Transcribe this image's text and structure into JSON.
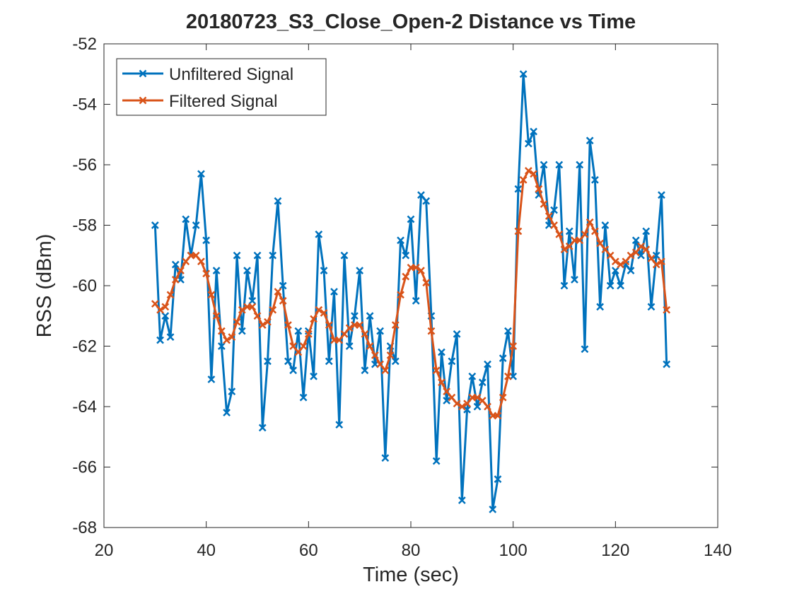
{
  "chart_data": {
    "type": "line",
    "title": "20180723_S3_Close_Open-2 Distance vs Time",
    "x_label": "Time (sec)",
    "y_label": "RSS (dBm)",
    "x": [
      30,
      31,
      32,
      33,
      34,
      35,
      36,
      37,
      38,
      39,
      40,
      41,
      42,
      43,
      44,
      45,
      46,
      47,
      48,
      49,
      50,
      51,
      52,
      53,
      54,
      55,
      56,
      57,
      58,
      59,
      60,
      61,
      62,
      63,
      64,
      65,
      66,
      67,
      68,
      69,
      70,
      71,
      72,
      73,
      74,
      75,
      76,
      77,
      78,
      79,
      80,
      81,
      82,
      83,
      84,
      85,
      86,
      87,
      88,
      89,
      90,
      91,
      92,
      93,
      94,
      95,
      96,
      97,
      98,
      99,
      100,
      101,
      102,
      103,
      104,
      105,
      106,
      107,
      108,
      109,
      110,
      111,
      112,
      113,
      114,
      115,
      116,
      117,
      118,
      119,
      120,
      121,
      122,
      123,
      124,
      125,
      126,
      127,
      128,
      129,
      130
    ],
    "series": [
      {
        "name": "Unfiltered Signal",
        "color": "#0072bd",
        "values": [
          -58,
          -61.8,
          -61,
          -61.7,
          -59.3,
          -59.8,
          -57.8,
          -59,
          -58,
          -56.3,
          -58.5,
          -63.1,
          -59.5,
          -62,
          -64.2,
          -63.5,
          -59,
          -61.5,
          -59.5,
          -60.5,
          -59,
          -64.7,
          -62.5,
          -59,
          -57.2,
          -60,
          -62.5,
          -62.8,
          -61.5,
          -63.7,
          -61.5,
          -63,
          -58.3,
          -59.5,
          -62.5,
          -60.2,
          -64.6,
          -59,
          -62,
          -61,
          -59.5,
          -62.8,
          -61,
          -62.6,
          -61.5,
          -65.7,
          -62,
          -62.5,
          -58.5,
          -59,
          -57.8,
          -60.5,
          -57,
          -57.2,
          -61,
          -65.8,
          -62.2,
          -63.8,
          -62.5,
          -61.6,
          -67.1,
          -64.1,
          -63,
          -64,
          -63.2,
          -62.6,
          -67.4,
          -66.4,
          -62.4,
          -61.5,
          -63,
          -56.8,
          -53,
          -55.3,
          -54.9,
          -57,
          -56,
          -58,
          -57.5,
          -56,
          -60,
          -58.2,
          -59.8,
          -56,
          -62.1,
          -55.2,
          -56.5,
          -60.7,
          -58,
          -60,
          -59.5,
          -60,
          -59.3,
          -59.5,
          -58.5,
          -59,
          -58.2,
          -60.7,
          -59,
          -57,
          -62.6
        ]
      },
      {
        "name": "Filtered Signal",
        "color": "#d95319",
        "values": [
          -60.6,
          -60.8,
          -60.7,
          -60.3,
          -59.8,
          -59.5,
          -59.2,
          -59,
          -59,
          -59.2,
          -59.6,
          -60.3,
          -61,
          -61.5,
          -61.8,
          -61.7,
          -61.2,
          -60.8,
          -60.7,
          -60.7,
          -61,
          -61.3,
          -61.2,
          -60.8,
          -60.2,
          -60.5,
          -61.3,
          -62,
          -62.2,
          -62,
          -61.6,
          -61.1,
          -60.8,
          -60.9,
          -61.3,
          -61.8,
          -61.8,
          -61.6,
          -61.4,
          -61.3,
          -61.3,
          -61.6,
          -62,
          -62.3,
          -62.6,
          -62.8,
          -62.3,
          -61.3,
          -60.3,
          -59.7,
          -59.4,
          -59.4,
          -59.5,
          -59.9,
          -61.5,
          -62.8,
          -63.2,
          -63.5,
          -63.7,
          -63.9,
          -64,
          -63.9,
          -63.7,
          -63.7,
          -63.8,
          -64,
          -64.3,
          -64.3,
          -63.7,
          -63,
          -62,
          -58.2,
          -56.5,
          -56.2,
          -56.3,
          -56.8,
          -57.3,
          -57.7,
          -58,
          -58.3,
          -58.8,
          -58.7,
          -58.5,
          -58.5,
          -58.3,
          -57.9,
          -58.2,
          -58.6,
          -58.8,
          -59,
          -59.2,
          -59.3,
          -59.2,
          -59,
          -58.9,
          -58.7,
          -58.8,
          -59.1,
          -59.3,
          -59.2,
          -60.8
        ]
      }
    ],
    "xlim": [
      20,
      140
    ],
    "xticks": [
      20,
      40,
      60,
      80,
      100,
      120,
      140
    ],
    "ylim": [
      -68,
      -52
    ],
    "yticks": [
      -68,
      -66,
      -64,
      -62,
      -60,
      -58,
      -56,
      -54,
      -52
    ],
    "legend": "upper left",
    "grid": false
  }
}
